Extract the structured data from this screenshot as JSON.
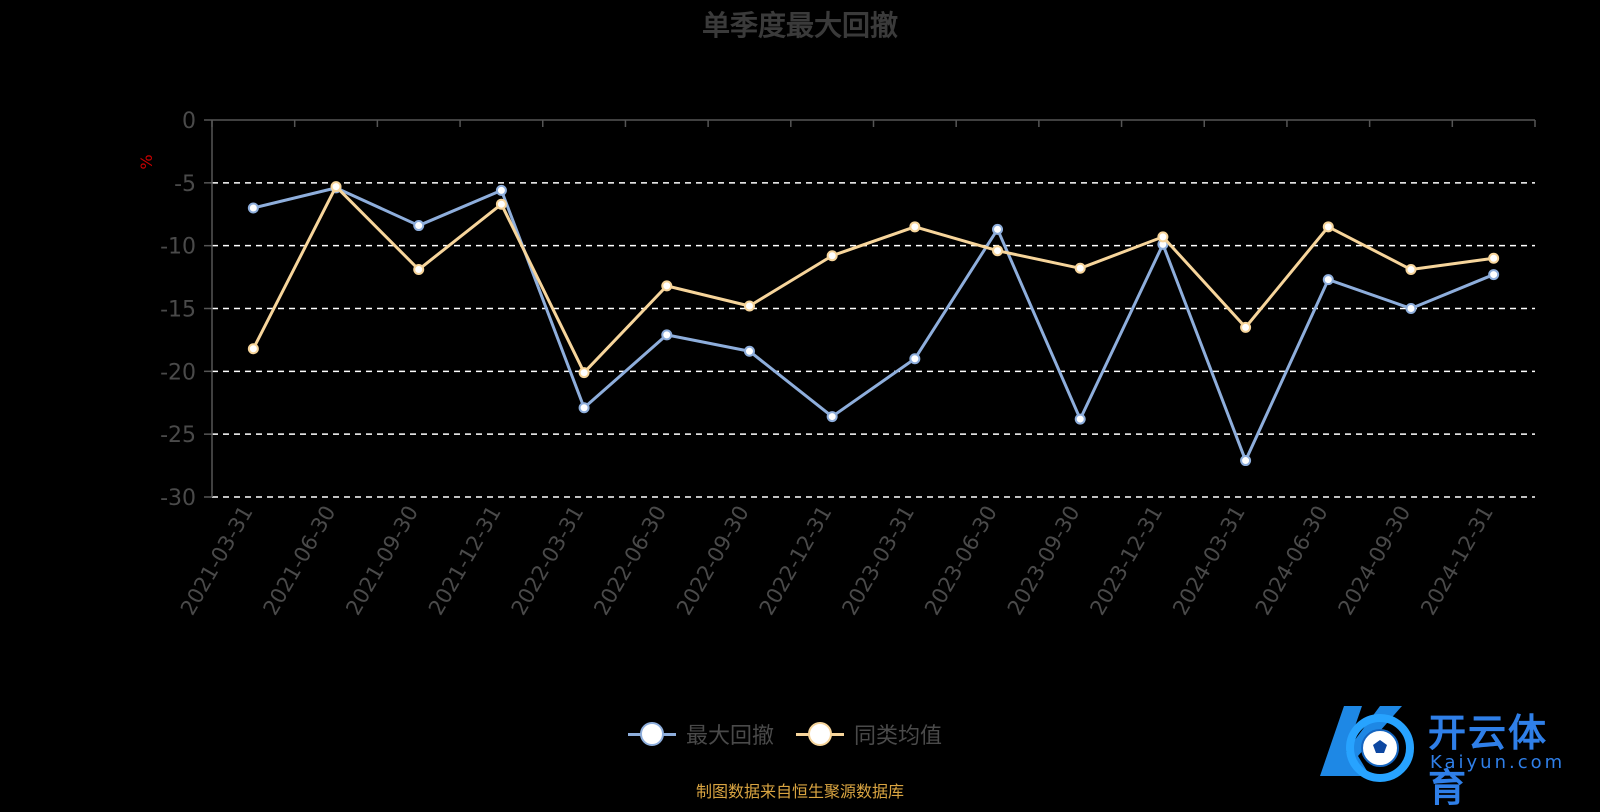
{
  "chart_data": {
    "type": "line",
    "title": "单季度最大回撤",
    "ylabel": "%",
    "xlabel": "",
    "ylim": [
      -30,
      0
    ],
    "yticks": [
      0,
      -5,
      -10,
      -15,
      -20,
      -25,
      -30
    ],
    "grid": true,
    "legend_position": "bottom-center",
    "categories": [
      "2021-03-31",
      "2021-06-30",
      "2021-09-30",
      "2021-12-31",
      "2022-03-31",
      "2022-06-30",
      "2022-09-30",
      "2022-12-31",
      "2023-03-31",
      "2023-06-30",
      "2023-09-30",
      "2023-12-31",
      "2024-03-31",
      "2024-06-30",
      "2024-09-30",
      "2024-12-31"
    ],
    "series": [
      {
        "name": "最大回撤",
        "color": "#8eaedc",
        "values": [
          -7.0,
          -5.4,
          -8.4,
          -5.6,
          -22.9,
          -17.1,
          -18.4,
          -23.6,
          -19.0,
          -8.7,
          -23.8,
          -9.9,
          -27.1,
          -12.7,
          -15.0,
          -12.3
        ]
      },
      {
        "name": "同类均值",
        "color": "#f7d59b",
        "values": [
          -18.2,
          -5.3,
          -11.9,
          -6.7,
          -20.1,
          -13.2,
          -14.8,
          -10.8,
          -8.5,
          -10.4,
          -11.8,
          -9.3,
          -16.5,
          -8.5,
          -11.9,
          -11.0
        ]
      }
    ]
  },
  "source_text": "制图数据来自恒生聚源数据库",
  "logo": {
    "cn": "开云体育",
    "en": "Kaiyun.com"
  },
  "colors": {
    "axis": "#555555",
    "grid": "#ffffff",
    "ylabel": "#cc0000"
  }
}
